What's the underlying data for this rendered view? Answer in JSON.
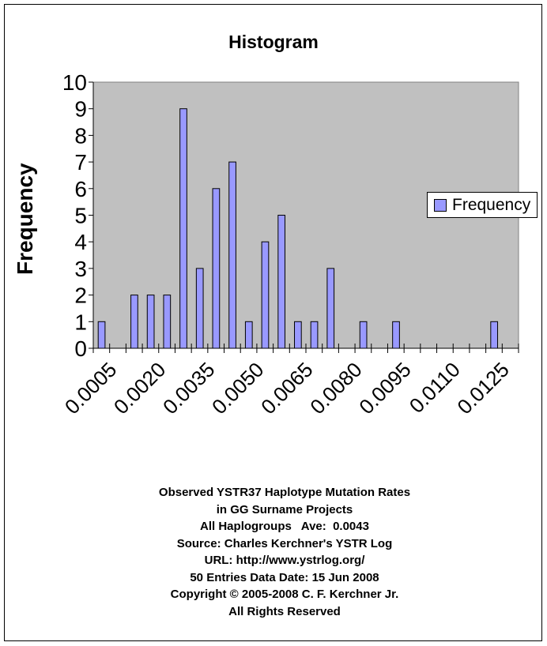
{
  "chart_data": {
    "type": "bar",
    "title": "Histogram",
    "xlabel": "",
    "ylabel": "Frequency",
    "ylim": [
      0,
      10
    ],
    "yticks": [
      "0",
      "1",
      "2",
      "3",
      "4",
      "5",
      "6",
      "7",
      "8",
      "9",
      "10"
    ],
    "categories": [
      "0.0005",
      "0.0010",
      "0.0015",
      "0.0020",
      "0.0025",
      "0.0030",
      "0.0035",
      "0.0040",
      "0.0045",
      "0.0050",
      "0.0055",
      "0.0060",
      "0.0065",
      "0.0070",
      "0.0075",
      "0.0080",
      "0.0085",
      "0.0090",
      "0.0095",
      "0.0100",
      "0.0105",
      "0.0110",
      "0.0115",
      "0.0120",
      "0.0125",
      "0.0130"
    ],
    "xtick_labels": [
      "0.0005",
      "0.0020",
      "0.0035",
      "0.0050",
      "0.0065",
      "0.0080",
      "0.0095",
      "0.0110",
      "0.0125"
    ],
    "series": [
      {
        "name": "Frequency",
        "color": "#9999ff",
        "values": [
          1,
          0,
          2,
          2,
          2,
          9,
          3,
          6,
          7,
          1,
          4,
          5,
          1,
          1,
          3,
          0,
          1,
          0,
          1,
          0,
          0,
          0,
          0,
          0,
          1,
          0
        ]
      }
    ],
    "legend": "right",
    "plot_background": "#c0c0c0",
    "grid": false
  },
  "footer": [
    "Observed YSTR37 Haplotype Mutation Rates",
    "in GG Surname Projects",
    "All Haplogroups   Ave:  0.0043",
    "Source: Charles Kerchner's YSTR Log",
    "URL: http://www.ystrlog.org/",
    "50 Entries Data Date: 15 Jun 2008",
    "Copyright © 2005-2008 C. F. Kerchner Jr.",
    "All Rights Reserved"
  ]
}
